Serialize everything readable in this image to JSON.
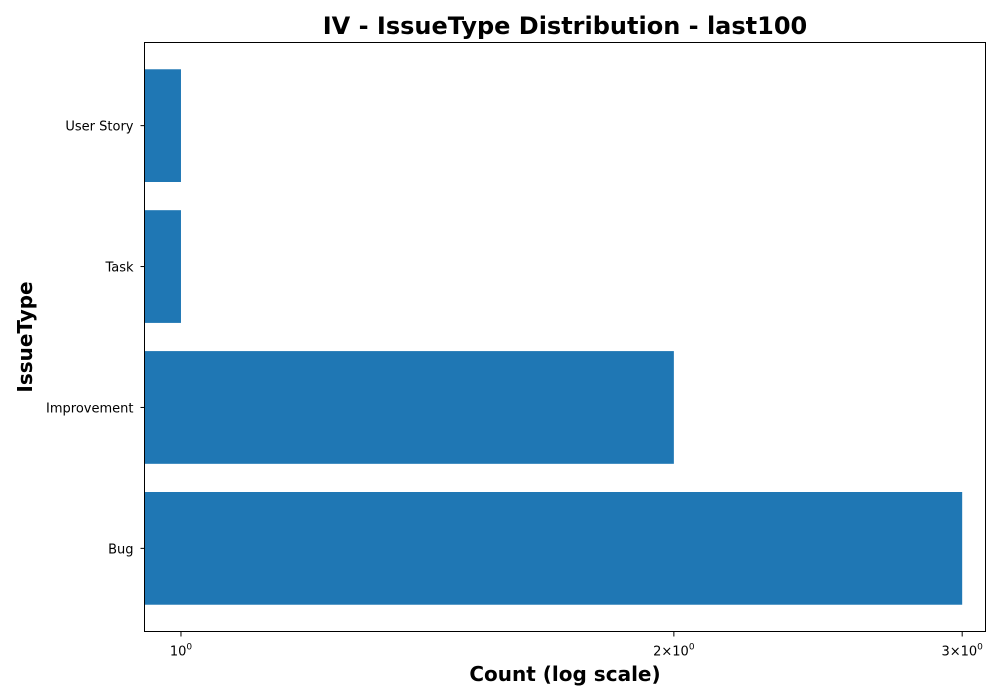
{
  "chart_data": {
    "type": "bar",
    "orientation": "horizontal",
    "title": "IV - IssueType Distribution - last100",
    "xlabel": "Count (log scale)",
    "ylabel": "IssueType",
    "x_scale": "log",
    "xlim": [
      0.95,
      3.1
    ],
    "x_ticks": [
      {
        "value": 1,
        "base": "10",
        "exp": "0",
        "mult": ""
      },
      {
        "value": 2,
        "base": "10",
        "exp": "0",
        "mult": "2×"
      },
      {
        "value": 3,
        "base": "10",
        "exp": "0",
        "mult": "3×"
      }
    ],
    "categories": [
      "Bug",
      "Improvement",
      "Task",
      "User Story"
    ],
    "values": [
      3,
      2,
      1,
      1
    ],
    "bar_color": "#1f77b4",
    "grid": false,
    "legend": "none"
  }
}
